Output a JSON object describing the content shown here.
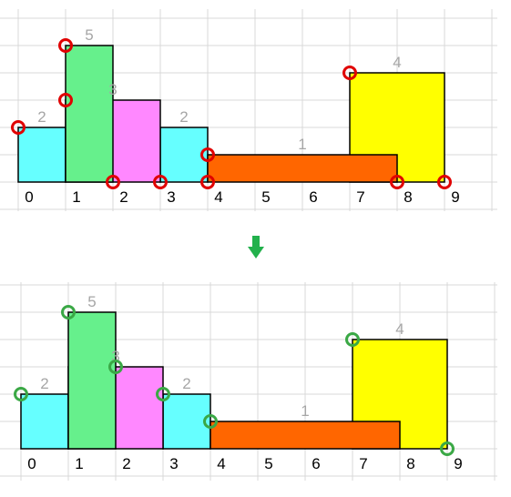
{
  "colors": {
    "cyan": "#66ffff",
    "magenta": "#ff88ff",
    "green": "#66f08c",
    "orange": "#ff6600",
    "yellow": "#ffff00",
    "grid": "#d9d9d9",
    "label": "#a6a6a6",
    "tick": "#000000",
    "marker_before": "#e00000",
    "marker_after": "#3aa845",
    "arrow": "#22b14c"
  },
  "arrow_icon": "down-arrow-icon",
  "panels": [
    {
      "id": "before",
      "x_ticks": [
        "0",
        "1",
        "2",
        "3",
        "4",
        "5",
        "6",
        "7",
        "8",
        "9"
      ],
      "buildings": [
        {
          "left": 0,
          "right": 1,
          "height": 2,
          "label": "2",
          "color": "cyan"
        },
        {
          "left": 3,
          "right": 4,
          "height": 2,
          "label": "2",
          "color": "cyan"
        },
        {
          "left": 1,
          "right": 3,
          "height": 3,
          "label": "3",
          "color": "magenta"
        },
        {
          "left": 1,
          "right": 2,
          "height": 5,
          "label": "5",
          "color": "green"
        },
        {
          "left": 7,
          "right": 9,
          "height": 4,
          "label": "4",
          "color": "yellow"
        },
        {
          "left": 4,
          "right": 8,
          "height": 1,
          "label": "1",
          "color": "orange"
        }
      ],
      "markers": [
        [
          0,
          2
        ],
        [
          1,
          3
        ],
        [
          1,
          5
        ],
        [
          2,
          0
        ],
        [
          3,
          0
        ],
        [
          4,
          0
        ],
        [
          4,
          1
        ],
        [
          7,
          4
        ],
        [
          8,
          0
        ],
        [
          9,
          0
        ]
      ],
      "marker_color": "marker_before"
    },
    {
      "id": "after",
      "x_ticks": [
        "0",
        "1",
        "2",
        "3",
        "4",
        "5",
        "6",
        "7",
        "8",
        "9"
      ],
      "buildings": [
        {
          "left": 0,
          "right": 1,
          "height": 2,
          "label": "2",
          "color": "cyan"
        },
        {
          "left": 3,
          "right": 4,
          "height": 2,
          "label": "2",
          "color": "cyan"
        },
        {
          "left": 1,
          "right": 3,
          "height": 3,
          "label": "3",
          "color": "magenta"
        },
        {
          "left": 1,
          "right": 2,
          "height": 5,
          "label": "5",
          "color": "green"
        },
        {
          "left": 7,
          "right": 9,
          "height": 4,
          "label": "4",
          "color": "yellow"
        },
        {
          "left": 4,
          "right": 8,
          "height": 1,
          "label": "1",
          "color": "orange"
        }
      ],
      "markers": [
        [
          0,
          2
        ],
        [
          1,
          5
        ],
        [
          2,
          3
        ],
        [
          3,
          2
        ],
        [
          4,
          1
        ],
        [
          7,
          4
        ],
        [
          9,
          0
        ]
      ],
      "marker_color": "marker_after"
    }
  ]
}
